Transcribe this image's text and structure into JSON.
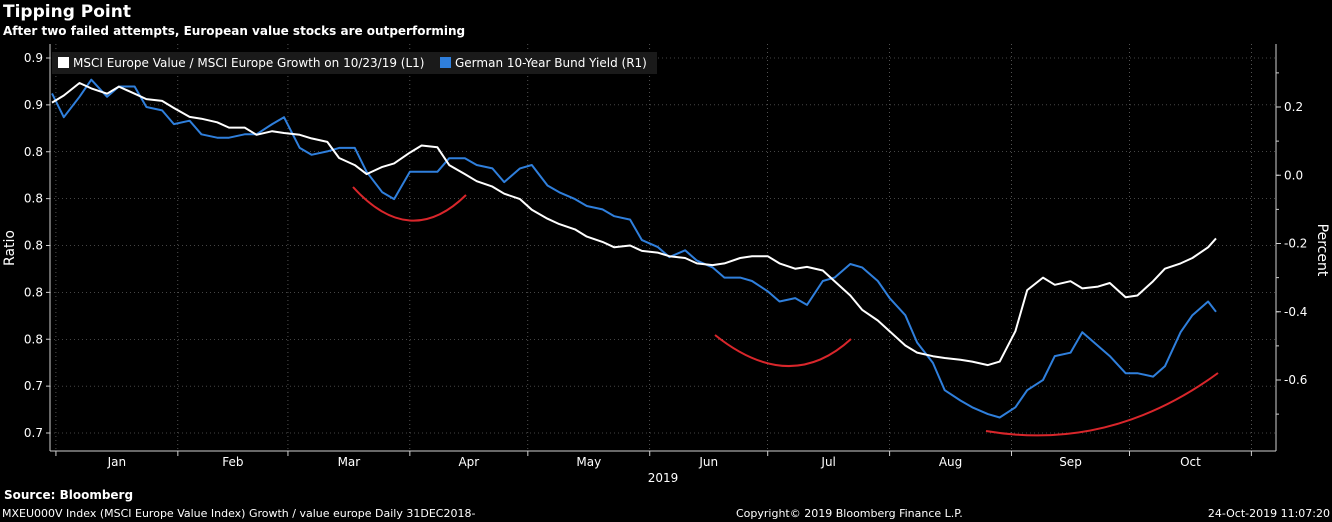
{
  "header": {
    "title": "Tipping Point",
    "subtitle": "After two failed attempts, European value stocks are outperforming"
  },
  "footer": {
    "source": "Source: Bloomberg",
    "query": "MXEU000V Index (MSCI Europe Value Index) Growth / value europe  Daily 31DEC2018-",
    "copyright": "Copyright© 2019 Bloomberg Finance L.P.",
    "timestamp": "24-Oct-2019 11:07:20"
  },
  "colors": {
    "background": "#000000",
    "ratio_series": "#ffffff",
    "yield_series": "#2f7fdc",
    "annotation_arcs": "#d9262b",
    "grid": "#8a8a8a"
  },
  "chart_data": {
    "type": "line",
    "title": "Tipping Point",
    "subtitle": "After two failed attempts, European value stocks are outperforming",
    "x_axis": {
      "tick_labels": [
        "Jan",
        "Feb",
        "Mar",
        "Apr",
        "May",
        "Jun",
        "Jul",
        "Aug",
        "Sep",
        "Oct"
      ],
      "year_label": "2019",
      "range": [
        "2018-12-31",
        "2019-10-23"
      ]
    },
    "y_left": {
      "label": "Ratio",
      "tick_labels": [
        "0.7",
        "0.7",
        "0.8",
        "0.8",
        "0.8",
        "0.8",
        "0.8",
        "0.9",
        "0.9"
      ],
      "range": [
        0.695,
        0.905
      ]
    },
    "y_right": {
      "label": "Percent",
      "tick_labels": [
        "-0.6",
        "-0.4",
        "-0.2",
        "0.0",
        "0.2"
      ],
      "range": [
        -0.8,
        0.4
      ]
    },
    "grid": true,
    "legend_position": "top-left",
    "series": [
      {
        "name": "MSCI Europe Value / MSCI Europe Growth on 10/23/19 (L1)",
        "axis": "left",
        "points": [
          [
            "2018-12-31",
            0.88
          ],
          [
            "2019-01-03",
            0.884
          ],
          [
            "2019-01-07",
            0.891
          ],
          [
            "2019-01-10",
            0.888
          ],
          [
            "2019-01-14",
            0.885
          ],
          [
            "2019-01-17",
            0.889
          ],
          [
            "2019-01-21",
            0.885
          ],
          [
            "2019-01-24",
            0.882
          ],
          [
            "2019-01-28",
            0.881
          ],
          [
            "2019-01-31",
            0.877
          ],
          [
            "2019-02-04",
            0.872
          ],
          [
            "2019-02-07",
            0.871
          ],
          [
            "2019-02-11",
            0.869
          ],
          [
            "2019-02-14",
            0.866
          ],
          [
            "2019-02-18",
            0.866
          ],
          [
            "2019-02-21",
            0.862
          ],
          [
            "2019-02-25",
            0.864
          ],
          [
            "2019-02-28",
            0.863
          ],
          [
            "2019-03-04",
            0.862
          ],
          [
            "2019-03-07",
            0.86
          ],
          [
            "2019-03-11",
            0.858
          ],
          [
            "2019-03-14",
            0.849
          ],
          [
            "2019-03-18",
            0.845
          ],
          [
            "2019-03-21",
            0.84
          ],
          [
            "2019-03-25",
            0.844
          ],
          [
            "2019-03-28",
            0.846
          ],
          [
            "2019-04-01",
            0.852
          ],
          [
            "2019-04-04",
            0.856
          ],
          [
            "2019-04-08",
            0.855
          ],
          [
            "2019-04-11",
            0.845
          ],
          [
            "2019-04-15",
            0.84
          ],
          [
            "2019-04-18",
            0.836
          ],
          [
            "2019-04-22",
            0.833
          ],
          [
            "2019-04-25",
            0.829
          ],
          [
            "2019-04-29",
            0.826
          ],
          [
            "2019-05-02",
            0.82
          ],
          [
            "2019-05-06",
            0.815
          ],
          [
            "2019-05-09",
            0.812
          ],
          [
            "2019-05-13",
            0.809
          ],
          [
            "2019-05-16",
            0.805
          ],
          [
            "2019-05-20",
            0.802
          ],
          [
            "2019-05-23",
            0.799
          ],
          [
            "2019-05-27",
            0.8
          ],
          [
            "2019-05-30",
            0.797
          ],
          [
            "2019-06-03",
            0.796
          ],
          [
            "2019-06-06",
            0.794
          ],
          [
            "2019-06-10",
            0.793
          ],
          [
            "2019-06-13",
            0.79
          ],
          [
            "2019-06-17",
            0.789
          ],
          [
            "2019-06-20",
            0.79
          ],
          [
            "2019-06-24",
            0.793
          ],
          [
            "2019-06-27",
            0.794
          ],
          [
            "2019-07-01",
            0.794
          ],
          [
            "2019-07-04",
            0.79
          ],
          [
            "2019-07-08",
            0.787
          ],
          [
            "2019-07-11",
            0.788
          ],
          [
            "2019-07-15",
            0.786
          ],
          [
            "2019-07-18",
            0.78
          ],
          [
            "2019-07-22",
            0.772
          ],
          [
            "2019-07-25",
            0.764
          ],
          [
            "2019-07-29",
            0.758
          ],
          [
            "2019-08-01",
            0.752
          ],
          [
            "2019-08-05",
            0.744
          ],
          [
            "2019-08-08",
            0.74
          ],
          [
            "2019-08-12",
            0.738
          ],
          [
            "2019-08-15",
            0.737
          ],
          [
            "2019-08-19",
            0.736
          ],
          [
            "2019-08-22",
            0.735
          ],
          [
            "2019-08-26",
            0.733
          ],
          [
            "2019-08-29",
            0.735
          ],
          [
            "2019-09-02",
            0.752
          ],
          [
            "2019-09-05",
            0.775
          ],
          [
            "2019-09-09",
            0.782
          ],
          [
            "2019-09-12",
            0.778
          ],
          [
            "2019-09-16",
            0.78
          ],
          [
            "2019-09-19",
            0.776
          ],
          [
            "2019-09-23",
            0.777
          ],
          [
            "2019-09-26",
            0.779
          ],
          [
            "2019-09-30",
            0.771
          ],
          [
            "2019-10-03",
            0.772
          ],
          [
            "2019-10-07",
            0.78
          ],
          [
            "2019-10-10",
            0.787
          ],
          [
            "2019-10-14",
            0.79
          ],
          [
            "2019-10-17",
            0.793
          ],
          [
            "2019-10-21",
            0.799
          ],
          [
            "2019-10-23",
            0.804
          ]
        ]
      },
      {
        "name": "German 10-Year Bund Yield (R1)",
        "axis": "right",
        "points": [
          [
            "2018-12-31",
            0.24
          ],
          [
            "2019-01-03",
            0.17
          ],
          [
            "2019-01-07",
            0.23
          ],
          [
            "2019-01-10",
            0.28
          ],
          [
            "2019-01-14",
            0.23
          ],
          [
            "2019-01-17",
            0.26
          ],
          [
            "2019-01-21",
            0.26
          ],
          [
            "2019-01-24",
            0.2
          ],
          [
            "2019-01-28",
            0.19
          ],
          [
            "2019-01-31",
            0.15
          ],
          [
            "2019-02-04",
            0.16
          ],
          [
            "2019-02-07",
            0.12
          ],
          [
            "2019-02-11",
            0.11
          ],
          [
            "2019-02-14",
            0.11
          ],
          [
            "2019-02-18",
            0.12
          ],
          [
            "2019-02-21",
            0.12
          ],
          [
            "2019-02-25",
            0.15
          ],
          [
            "2019-02-28",
            0.17
          ],
          [
            "2019-03-04",
            0.08
          ],
          [
            "2019-03-07",
            0.06
          ],
          [
            "2019-03-11",
            0.07
          ],
          [
            "2019-03-14",
            0.08
          ],
          [
            "2019-03-18",
            0.08
          ],
          [
            "2019-03-21",
            0.01
          ],
          [
            "2019-03-25",
            -0.05
          ],
          [
            "2019-03-28",
            -0.07
          ],
          [
            "2019-04-01",
            0.01
          ],
          [
            "2019-04-04",
            0.01
          ],
          [
            "2019-04-08",
            0.01
          ],
          [
            "2019-04-11",
            0.05
          ],
          [
            "2019-04-15",
            0.05
          ],
          [
            "2019-04-18",
            0.03
          ],
          [
            "2019-04-22",
            0.02
          ],
          [
            "2019-04-25",
            -0.02
          ],
          [
            "2019-04-29",
            0.02
          ],
          [
            "2019-05-02",
            0.03
          ],
          [
            "2019-05-06",
            -0.03
          ],
          [
            "2019-05-09",
            -0.05
          ],
          [
            "2019-05-13",
            -0.07
          ],
          [
            "2019-05-16",
            -0.09
          ],
          [
            "2019-05-20",
            -0.1
          ],
          [
            "2019-05-23",
            -0.12
          ],
          [
            "2019-05-27",
            -0.13
          ],
          [
            "2019-05-30",
            -0.19
          ],
          [
            "2019-06-03",
            -0.21
          ],
          [
            "2019-06-06",
            -0.24
          ],
          [
            "2019-06-10",
            -0.22
          ],
          [
            "2019-06-13",
            -0.25
          ],
          [
            "2019-06-17",
            -0.27
          ],
          [
            "2019-06-20",
            -0.3
          ],
          [
            "2019-06-24",
            -0.3
          ],
          [
            "2019-06-27",
            -0.31
          ],
          [
            "2019-07-01",
            -0.34
          ],
          [
            "2019-07-04",
            -0.37
          ],
          [
            "2019-07-08",
            -0.36
          ],
          [
            "2019-07-11",
            -0.38
          ],
          [
            "2019-07-15",
            -0.31
          ],
          [
            "2019-07-18",
            -0.3
          ],
          [
            "2019-07-22",
            -0.26
          ],
          [
            "2019-07-25",
            -0.27
          ],
          [
            "2019-07-29",
            -0.31
          ],
          [
            "2019-08-01",
            -0.36
          ],
          [
            "2019-08-05",
            -0.41
          ],
          [
            "2019-08-08",
            -0.49
          ],
          [
            "2019-08-12",
            -0.55
          ],
          [
            "2019-08-15",
            -0.63
          ],
          [
            "2019-08-19",
            -0.66
          ],
          [
            "2019-08-22",
            -0.68
          ],
          [
            "2019-08-26",
            -0.7
          ],
          [
            "2019-08-29",
            -0.71
          ],
          [
            "2019-09-02",
            -0.68
          ],
          [
            "2019-09-05",
            -0.63
          ],
          [
            "2019-09-09",
            -0.6
          ],
          [
            "2019-09-12",
            -0.53
          ],
          [
            "2019-09-16",
            -0.52
          ],
          [
            "2019-09-19",
            -0.46
          ],
          [
            "2019-09-23",
            -0.5
          ],
          [
            "2019-09-26",
            -0.53
          ],
          [
            "2019-09-30",
            -0.58
          ],
          [
            "2019-10-03",
            -0.58
          ],
          [
            "2019-10-07",
            -0.59
          ],
          [
            "2019-10-10",
            -0.56
          ],
          [
            "2019-10-14",
            -0.46
          ],
          [
            "2019-10-17",
            -0.41
          ],
          [
            "2019-10-21",
            -0.37
          ],
          [
            "2019-10-23",
            -0.4
          ]
        ]
      }
    ]
  }
}
